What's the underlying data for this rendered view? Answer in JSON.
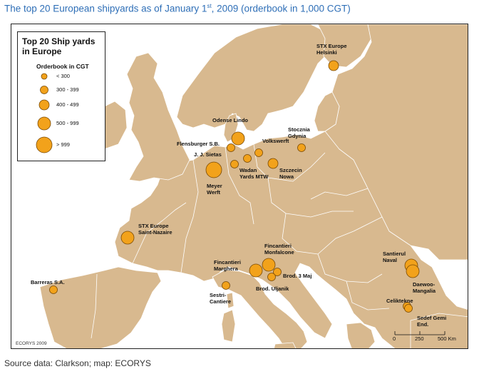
{
  "title": {
    "main": "The top 20 European shipyards as of January 1",
    "sup": "st",
    "rest": ", 2009 (orderbook in 1,000 CGT)"
  },
  "legend": {
    "title": "Top 20 Ship yards in Europe",
    "subtitle": "Orderbook in CGT",
    "classes": [
      "< 300",
      "300 - 399",
      "400 - 499",
      "500 - 999",
      "> 999"
    ]
  },
  "shipyards": [
    {
      "label": "STX Europe Helsinki",
      "lines": [
        "STX Europe",
        "Helsinki"
      ]
    },
    {
      "label": "Odense Lindo",
      "lines": [
        "Odense Lindo"
      ]
    },
    {
      "label": "Stocznia Gdynia",
      "lines": [
        "Stocznia",
        "Gdynia"
      ]
    },
    {
      "label": "Flensburger S.B.",
      "lines": [
        "Flensburger S.B."
      ]
    },
    {
      "label": "Volkswerft",
      "lines": [
        "Volkswerft"
      ]
    },
    {
      "label": "J. J. Sietas",
      "lines": [
        "J. J. Sietas"
      ]
    },
    {
      "label": "Wadan Yards MTW",
      "lines": [
        "Wadan",
        "Yards MTW"
      ]
    },
    {
      "label": "Szczecin Nowa",
      "lines": [
        "Szczecin",
        "Nowa"
      ]
    },
    {
      "label": "Meyer Werft",
      "lines": [
        "Meyer",
        "Werft"
      ]
    },
    {
      "label": "STX Europe Saint-Nazaire",
      "lines": [
        "STX Europe",
        "Saint-Nazaire"
      ]
    },
    {
      "label": "Fincantieri Monfalcone",
      "lines": [
        "Fincantieri",
        "Monfalcone"
      ]
    },
    {
      "label": "Fincantieri Marghera",
      "lines": [
        "Fincantieri",
        "Marghera"
      ]
    },
    {
      "label": "Brod. 3 Maj",
      "lines": [
        "Brod. 3 Maj"
      ]
    },
    {
      "label": "Brod. Uljanik",
      "lines": [
        "Brod. Uljanik"
      ]
    },
    {
      "label": "Sestri-Cantiere",
      "lines": [
        "Sestri-",
        "Cantiere"
      ]
    },
    {
      "label": "Barreras S.A.",
      "lines": [
        "Barreras S.A."
      ]
    },
    {
      "label": "Santierul Naval",
      "lines": [
        "Santierul",
        "Naval"
      ]
    },
    {
      "label": "Daewoo-Mangalia",
      "lines": [
        "Daewoo-",
        "Mangalia"
      ]
    },
    {
      "label": "Celiktekne",
      "lines": [
        "Celiktekne"
      ]
    },
    {
      "label": "Sedef Gemi End.",
      "lines": [
        "Sedef Gemi",
        "End."
      ]
    }
  ],
  "scale": {
    "zero": "0",
    "mid": "250",
    "end": "500 Km"
  },
  "credit": "ECORYS 2009",
  "source": "Source data: Clarkson; map: ECORYS",
  "colors": {
    "land": "#d8b98f",
    "border": "#ffffff",
    "marker": "#f2a21b",
    "marker_stroke": "#7a4a05",
    "title": "#2f6fb7"
  }
}
